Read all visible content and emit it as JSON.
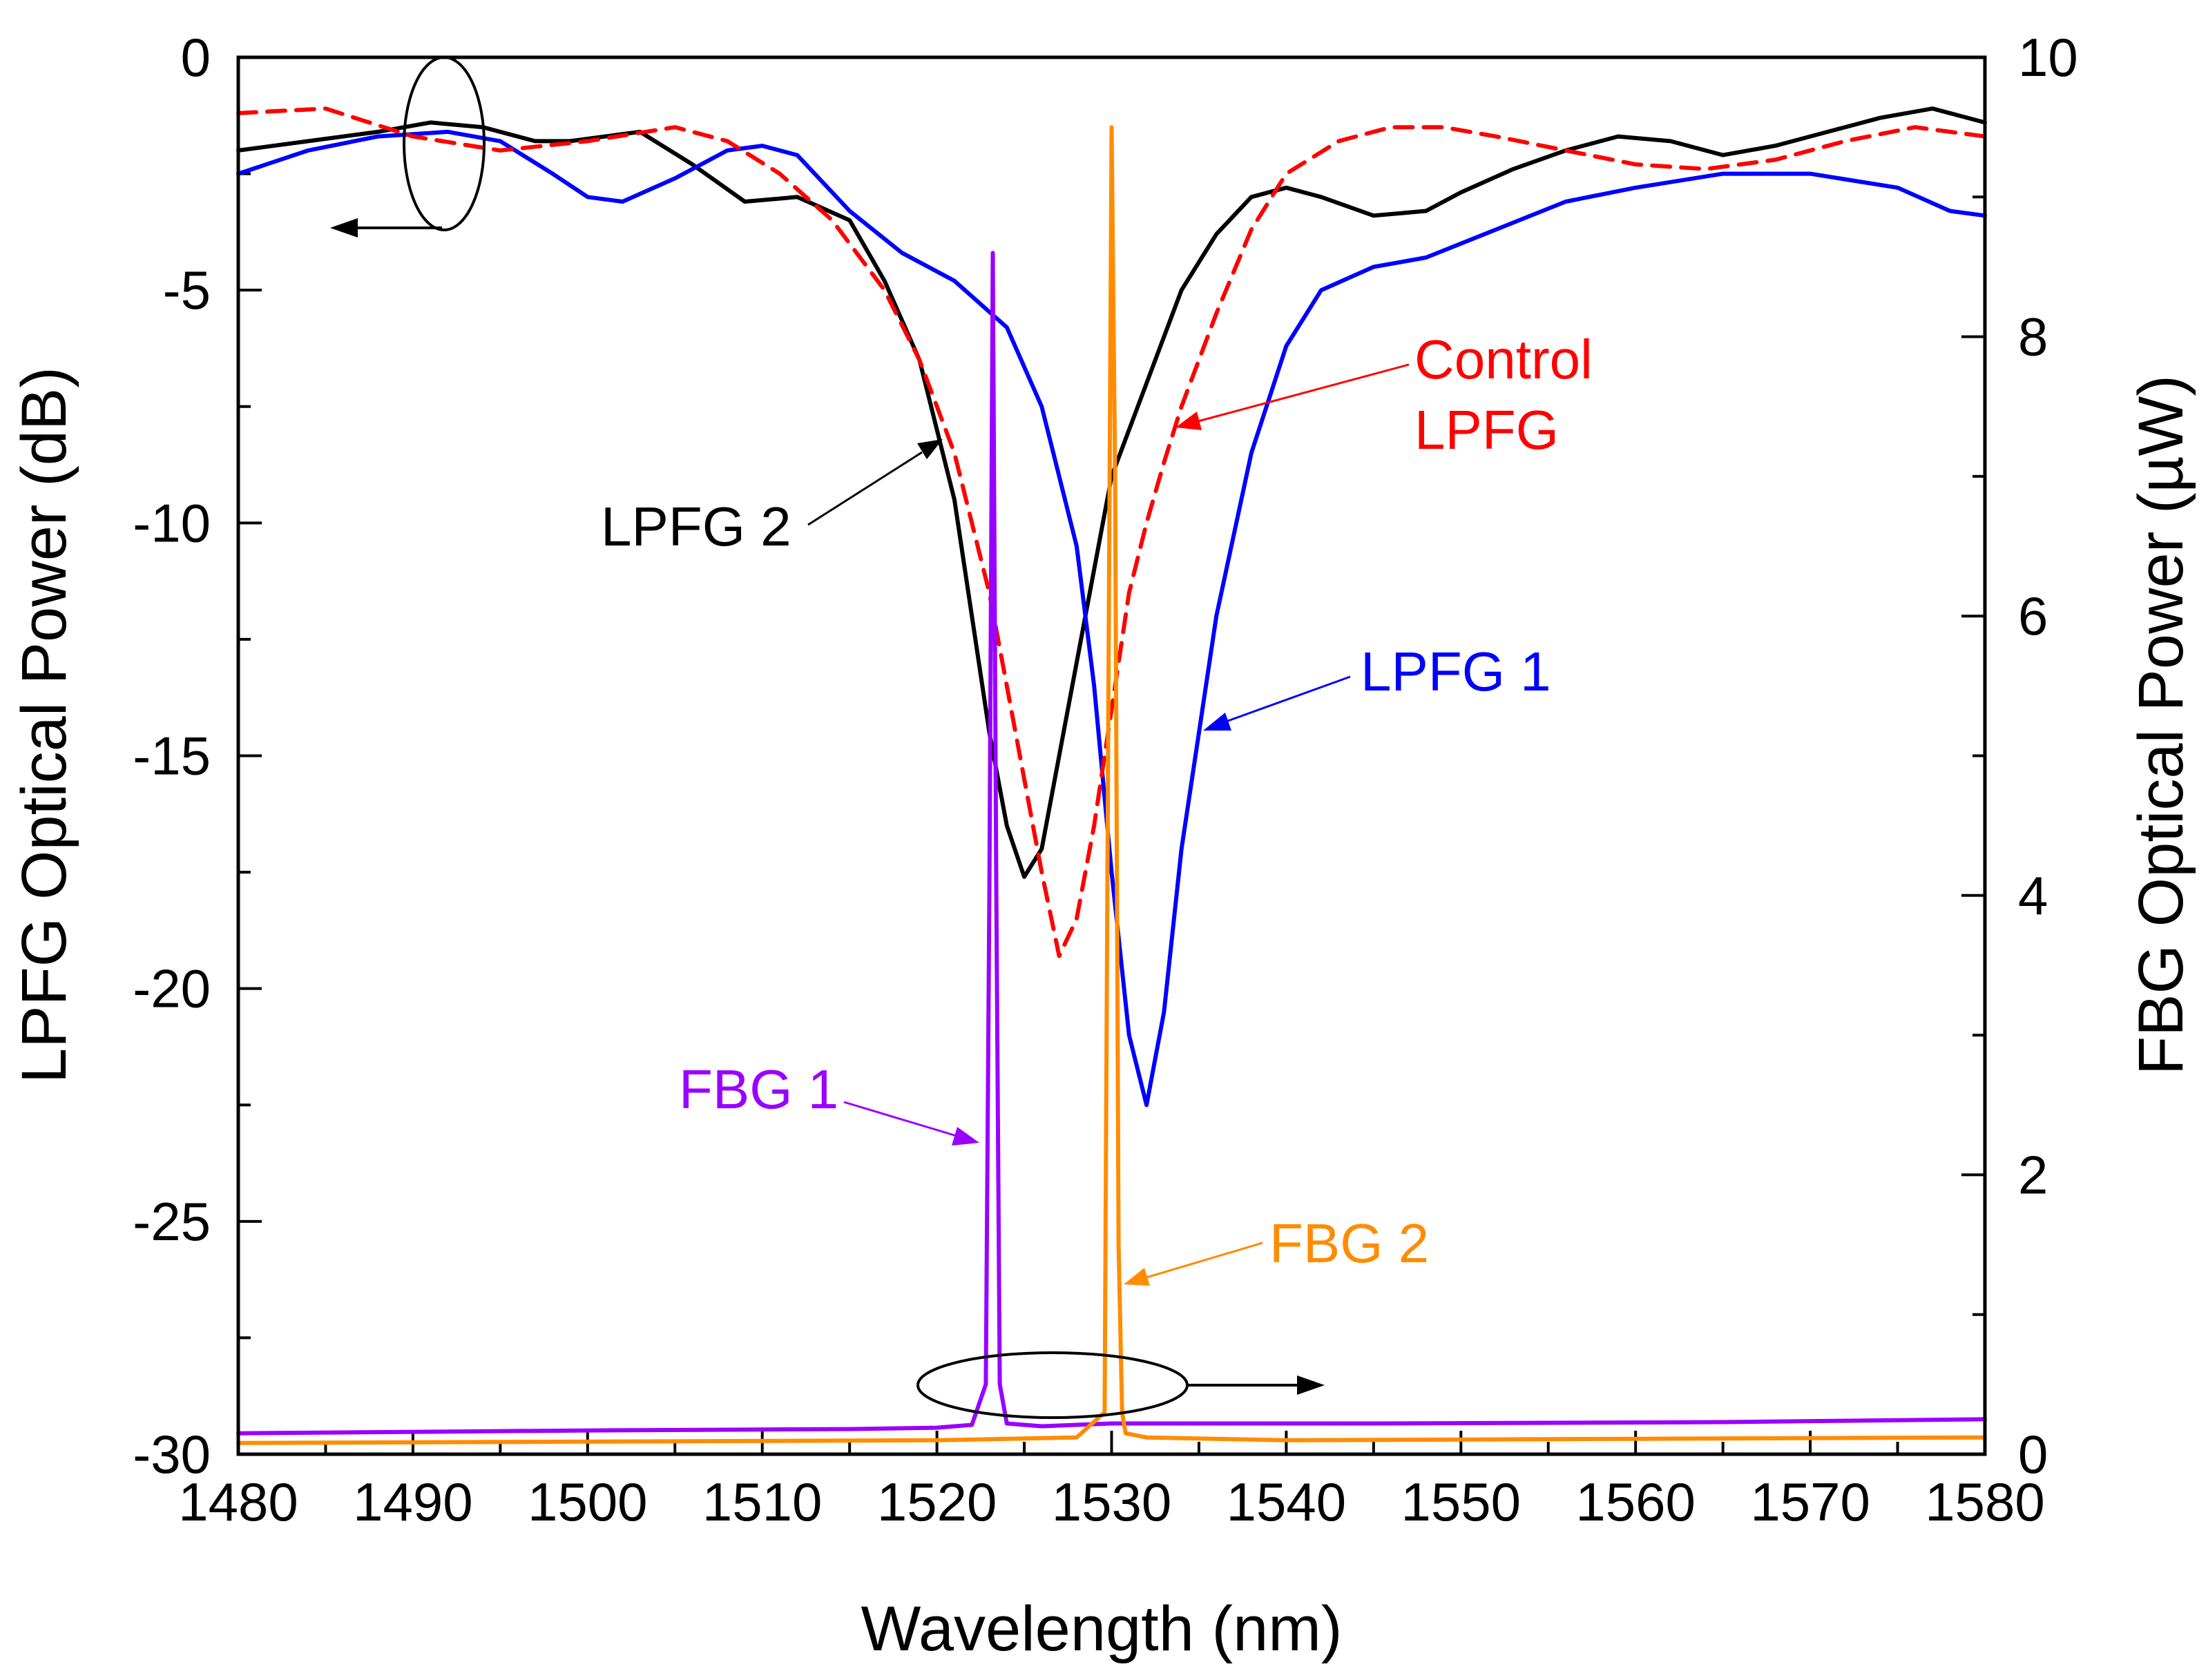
{
  "chart_data": {
    "type": "line",
    "xlabel": "Wavelength (nm)",
    "ylabel_left": "LPFG Optical Power (dB)",
    "ylabel_right": "FBG Optical Power (µW)",
    "xlim": [
      1480,
      1580
    ],
    "ylim_left": [
      -30,
      0
    ],
    "ylim_right": [
      0,
      10
    ],
    "x_ticks": [
      "1480",
      "1490",
      "1500",
      "1510",
      "1520",
      "1530",
      "1540",
      "1550",
      "1560",
      "1570",
      "1580"
    ],
    "y_left_ticks": [
      "0",
      "-5",
      "-10",
      "-15",
      "-20",
      "-25",
      "-30"
    ],
    "y_right_ticks": [
      "0",
      "2",
      "4",
      "6",
      "8",
      "10"
    ],
    "grid": false,
    "series": [
      {
        "name": "LPFG 2",
        "axis": "left",
        "color": "#000000",
        "dash": "solid",
        "x": [
          1480,
          1484,
          1488,
          1491,
          1494,
          1497,
          1499,
          1501,
          1503,
          1506,
          1509,
          1512,
          1515,
          1517,
          1519,
          1521,
          1522,
          1523,
          1524,
          1525,
          1526,
          1527,
          1528,
          1529,
          1530,
          1532,
          1534,
          1536,
          1538,
          1540,
          1542,
          1545,
          1548,
          1550,
          1553,
          1556,
          1559,
          1562,
          1565,
          1568,
          1571,
          1574,
          1577,
          1580
        ],
        "y": [
          -2.0,
          -1.8,
          -1.6,
          -1.4,
          -1.5,
          -1.8,
          -1.8,
          -1.7,
          -1.6,
          -2.3,
          -3.1,
          -3.0,
          -3.5,
          -4.8,
          -6.5,
          -9.5,
          -12.0,
          -14.5,
          -16.5,
          -17.6,
          -17.0,
          -15.0,
          -13.0,
          -11.0,
          -9.0,
          -7.0,
          -5.0,
          -3.8,
          -3.0,
          -2.8,
          -3.0,
          -3.4,
          -3.3,
          -2.9,
          -2.4,
          -2.0,
          -1.7,
          -1.8,
          -2.1,
          -1.9,
          -1.6,
          -1.3,
          -1.1,
          -1.4
        ]
      },
      {
        "name": "LPFG 1",
        "axis": "left",
        "color": "#0000ff",
        "dash": "solid",
        "x": [
          1480,
          1484,
          1488,
          1492,
          1495,
          1498,
          1500,
          1502,
          1505,
          1508,
          1510,
          1512,
          1515,
          1518,
          1521,
          1524,
          1526,
          1528,
          1529,
          1530,
          1531,
          1532,
          1533,
          1534,
          1535,
          1536,
          1538,
          1540,
          1542,
          1545,
          1548,
          1552,
          1556,
          1560,
          1565,
          1570,
          1575,
          1578,
          1580
        ],
        "y": [
          -2.5,
          -2.0,
          -1.7,
          -1.6,
          -1.8,
          -2.5,
          -3.0,
          -3.1,
          -2.6,
          -2.0,
          -1.9,
          -2.1,
          -3.3,
          -4.2,
          -4.8,
          -5.8,
          -7.5,
          -10.5,
          -13.5,
          -17.5,
          -21.0,
          -22.5,
          -20.5,
          -17.0,
          -14.5,
          -12.0,
          -8.5,
          -6.2,
          -5.0,
          -4.5,
          -4.3,
          -3.7,
          -3.1,
          -2.8,
          -2.5,
          -2.5,
          -2.8,
          -3.3,
          -3.4
        ]
      },
      {
        "name": "Control LPFG",
        "axis": "left",
        "color": "#ff0000",
        "dash": "dashed",
        "x": [
          1480,
          1485,
          1490,
          1495,
          1500,
          1505,
          1508,
          1511,
          1514,
          1517,
          1519,
          1521,
          1523,
          1524,
          1525,
          1526,
          1527,
          1528,
          1529,
          1530,
          1531,
          1532,
          1533,
          1534,
          1536,
          1538,
          1540,
          1543,
          1546,
          1549,
          1552,
          1556,
          1560,
          1564,
          1568,
          1572,
          1576,
          1580
        ],
        "y": [
          -1.2,
          -1.1,
          -1.7,
          -2.0,
          -1.8,
          -1.5,
          -1.8,
          -2.5,
          -3.5,
          -5.0,
          -6.5,
          -8.5,
          -11.5,
          -13.5,
          -15.5,
          -17.5,
          -19.3,
          -18.5,
          -16.5,
          -14.0,
          -11.5,
          -10.0,
          -8.7,
          -7.5,
          -5.5,
          -3.7,
          -2.5,
          -1.8,
          -1.5,
          -1.5,
          -1.7,
          -2.0,
          -2.3,
          -2.4,
          -2.2,
          -1.8,
          -1.5,
          -1.7
        ]
      },
      {
        "name": "FBG 1",
        "axis": "right",
        "color": "#9900ff",
        "dash": "solid",
        "x": [
          1480,
          1500,
          1515,
          1520,
          1522,
          1522.8,
          1523.0,
          1523.2,
          1523.4,
          1523.6,
          1524.0,
          1526,
          1530,
          1545,
          1565,
          1580
        ],
        "y": [
          0.15,
          0.17,
          0.18,
          0.19,
          0.21,
          0.5,
          4.0,
          8.6,
          4.0,
          0.5,
          0.22,
          0.2,
          0.22,
          0.22,
          0.23,
          0.25
        ]
      },
      {
        "name": "FBG 2",
        "axis": "right",
        "color": "#ff8c00",
        "dash": "solid",
        "x": [
          1480,
          1500,
          1520,
          1528,
          1529.6,
          1529.8,
          1530.0,
          1530.2,
          1530.4,
          1530.6,
          1530.8,
          1532,
          1540,
          1560,
          1580
        ],
        "y": [
          0.08,
          0.09,
          0.1,
          0.12,
          0.3,
          5.0,
          9.5,
          7.0,
          1.5,
          0.3,
          0.15,
          0.12,
          0.1,
          0.11,
          0.12
        ]
      }
    ],
    "annotations": [
      {
        "text": "LPFG 2",
        "color": "#000000"
      },
      {
        "text": "LPFG 1",
        "color": "#0000ff"
      },
      {
        "text": "Control",
        "text2": "LPFG",
        "color": "#ff0000"
      },
      {
        "text": "FBG 1",
        "color": "#9900ff"
      },
      {
        "text": "FBG 2",
        "color": "#ff8c00"
      }
    ]
  }
}
